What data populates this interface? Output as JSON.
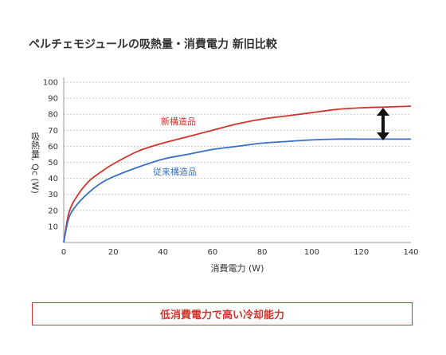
{
  "title": "ペルチェモジュールの吸熱量・消費電力 新旧比較",
  "footer": "低消費電力で高い冷却能力",
  "chart_data": {
    "type": "line",
    "xlabel": "消費電力 (W)",
    "ylabel": "吸熱量, Qc (W)",
    "xlim": [
      0,
      140
    ],
    "ylim": [
      0,
      100
    ],
    "x_ticks": [
      0,
      20,
      40,
      60,
      80,
      100,
      120,
      140
    ],
    "y_ticks": [
      10,
      20,
      30,
      40,
      50,
      60,
      70,
      80,
      90,
      100
    ],
    "grid": "horizontal dashed",
    "series": [
      {
        "name": "新構造品",
        "color": "#d0342c",
        "x": [
          0,
          2,
          5,
          10,
          15,
          20,
          30,
          40,
          50,
          60,
          70,
          80,
          90,
          100,
          110,
          120,
          130,
          140
        ],
        "y": [
          0,
          18,
          28,
          38,
          44,
          49,
          57,
          62,
          66,
          70,
          74,
          77,
          79,
          81,
          83,
          84,
          84.5,
          85
        ]
      },
      {
        "name": "従来構造品",
        "color": "#3a6fc4",
        "x": [
          0,
          2,
          5,
          10,
          15,
          20,
          30,
          40,
          50,
          60,
          70,
          80,
          90,
          100,
          110,
          120,
          130,
          140
        ],
        "y": [
          0,
          15,
          23,
          31,
          37,
          41,
          47,
          52,
          55,
          58,
          60,
          62,
          63,
          64,
          64.5,
          64.5,
          64.5,
          64.5
        ]
      }
    ],
    "annotation": "double-headed arrow showing gap between series at x≈130"
  }
}
